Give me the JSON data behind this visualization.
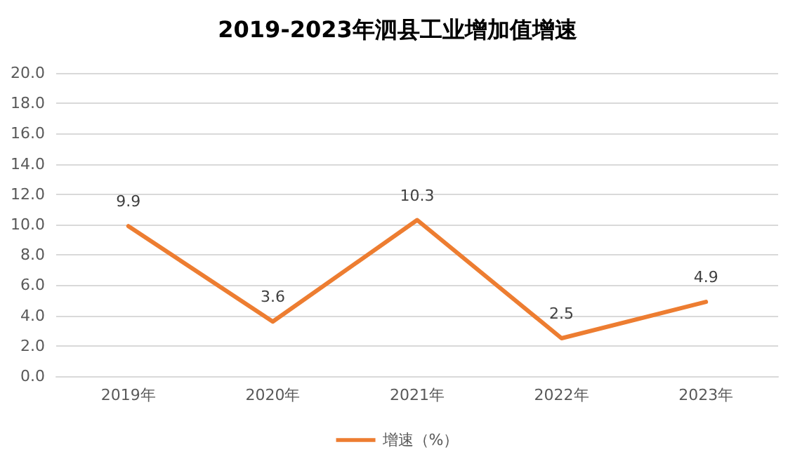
{
  "chart_data": {
    "type": "line",
    "title": "2019-2023年泗县工业增加值增速",
    "categories": [
      "2019年",
      "2020年",
      "2021年",
      "2022年",
      "2023年"
    ],
    "series": [
      {
        "name": "增速（%）",
        "color": "#ed7d31",
        "values": [
          9.9,
          3.6,
          10.3,
          2.5,
          4.9
        ]
      }
    ],
    "ylim": [
      0,
      20
    ],
    "yticks": [
      {
        "value": 0,
        "label": "0.0"
      },
      {
        "value": 2,
        "label": "2.0"
      },
      {
        "value": 4,
        "label": "4.0"
      },
      {
        "value": 6,
        "label": "6.0"
      },
      {
        "value": 8,
        "label": "8.0"
      },
      {
        "value": 10,
        "label": "10.0"
      },
      {
        "value": 12,
        "label": "12.0"
      },
      {
        "value": 14,
        "label": "14.0"
      },
      {
        "value": 16,
        "label": "16.0"
      },
      {
        "value": 18,
        "label": "18.0"
      },
      {
        "value": 20,
        "label": "20.0"
      }
    ],
    "grid": "y",
    "legend": "bottom",
    "marker": "none",
    "line_style": "solid",
    "data_labels": true
  }
}
